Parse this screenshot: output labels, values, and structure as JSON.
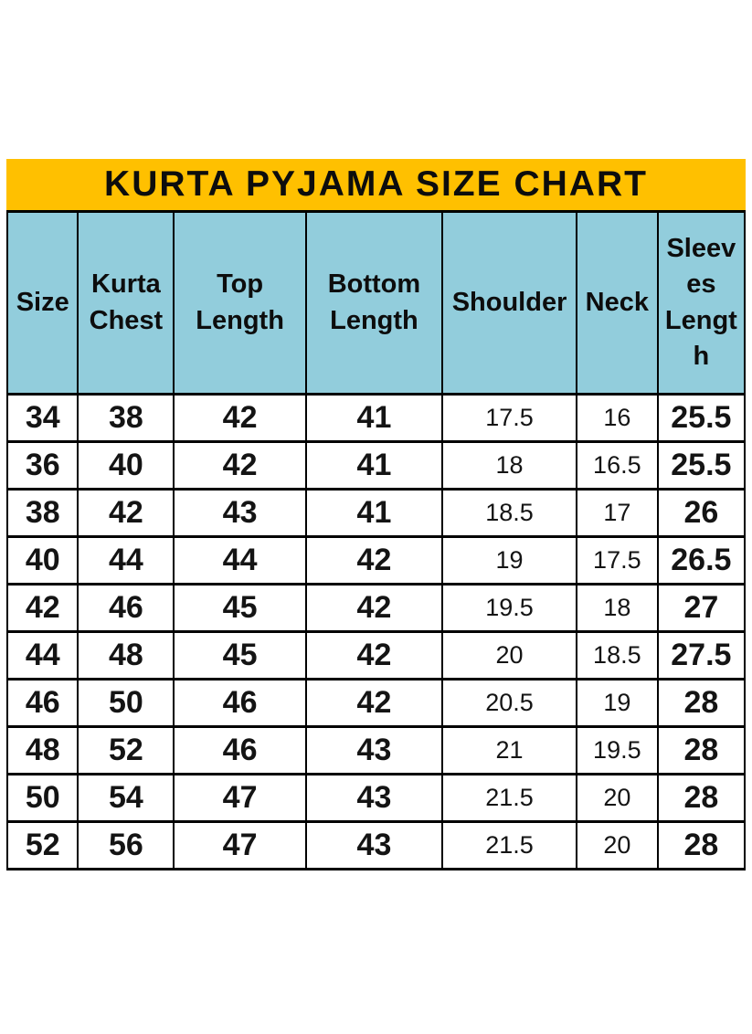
{
  "title": "KURTA PYJAMA SIZE CHART",
  "colors": {
    "banner_bg": "#FFC000",
    "header_bg": "#92CDDC",
    "border": "#000000",
    "text": "#000000",
    "page_bg": "#FFFFFF"
  },
  "table": {
    "columns": [
      {
        "key": "size",
        "label": "Size"
      },
      {
        "key": "kurta-chest",
        "label": "Kurta\nChest"
      },
      {
        "key": "top-length",
        "label": "Top\nLength"
      },
      {
        "key": "bottom-length",
        "label": "Bottom\nLength"
      },
      {
        "key": "shoulder",
        "label": "Shoulder"
      },
      {
        "key": "neck",
        "label": "Neck"
      },
      {
        "key": "sleeves-length",
        "label": "Sleev\nes\nLengt\nh"
      }
    ]
  },
  "chart_data": {
    "type": "table",
    "title": "KURTA PYJAMA SIZE CHART",
    "columns": [
      "Size",
      "Kurta Chest",
      "Top Length",
      "Bottom Length",
      "Shoulder",
      "Neck",
      "Sleeves Length"
    ],
    "rows": [
      [
        34,
        38,
        42,
        41,
        17.5,
        16,
        25.5
      ],
      [
        36,
        40,
        42,
        41,
        18,
        16.5,
        25.5
      ],
      [
        38,
        42,
        43,
        41,
        18.5,
        17,
        26
      ],
      [
        40,
        44,
        44,
        42,
        19,
        17.5,
        26.5
      ],
      [
        42,
        46,
        45,
        42,
        19.5,
        18,
        27
      ],
      [
        44,
        48,
        45,
        42,
        20,
        18.5,
        27.5
      ],
      [
        46,
        50,
        46,
        42,
        20.5,
        19,
        28
      ],
      [
        48,
        52,
        46,
        43,
        21,
        19.5,
        28
      ],
      [
        50,
        54,
        47,
        43,
        21.5,
        20,
        28
      ],
      [
        52,
        56,
        47,
        43,
        21.5,
        20,
        28
      ]
    ],
    "layout": {
      "header_fill": "#92CDDC",
      "title_fill": "#FFC000",
      "grid": "on"
    }
  }
}
